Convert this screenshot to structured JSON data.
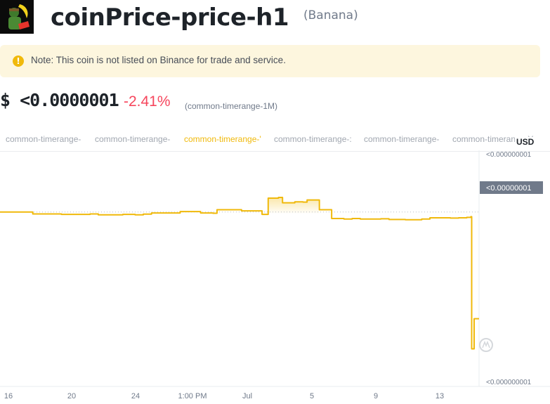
{
  "header": {
    "title": "coinPrice-price-h1",
    "subtitle": "(Banana)",
    "logo_icon": "banana-character-logo"
  },
  "note": {
    "icon": "exclamation-circle-icon",
    "text": "Note: This coin is not listed on Binance for trade and service."
  },
  "price": {
    "value": "$ <0.0000001",
    "change": "-2.41%",
    "range": "(common-timerange-1M)"
  },
  "tabs": [
    {
      "label": "common-timerange-",
      "active": false
    },
    {
      "label": "common-timerange-",
      "active": false
    },
    {
      "label": "common-timerange-'",
      "active": true
    },
    {
      "label": "common-timerange-:",
      "active": false
    },
    {
      "label": "common-timerange-",
      "active": false
    },
    {
      "label": "common-timerange-Y",
      "active": false
    }
  ],
  "colors": {
    "accent": "#f0b90b",
    "negative": "#f6465d",
    "muted": "#a1a7b0"
  },
  "chart_data": {
    "type": "line",
    "currency_label": "USD",
    "y_tick_labels": [
      "<0.000000001",
      "<0.00000001",
      "<0.000000001"
    ],
    "current_price_label": "<0.00000001",
    "x_tick_labels": [
      "16",
      "20",
      "24",
      "1:00 PM",
      "Jul",
      "5",
      "9",
      "13"
    ],
    "series": [
      {
        "points": [
          [
            0,
            0.74
          ],
          [
            5,
            0.74
          ],
          [
            8,
            0.732
          ],
          [
            12,
            0.732
          ],
          [
            15,
            0.73
          ],
          [
            22,
            0.732
          ],
          [
            24,
            0.728
          ],
          [
            28,
            0.728
          ],
          [
            30,
            0.73
          ],
          [
            33,
            0.728
          ],
          [
            35,
            0.731
          ],
          [
            37,
            0.736
          ],
          [
            42,
            0.736
          ],
          [
            44,
            0.742
          ],
          [
            47,
            0.742
          ],
          [
            49,
            0.736
          ],
          [
            52,
            0.735
          ],
          [
            53,
            0.75
          ],
          [
            57,
            0.75
          ],
          [
            59,
            0.745
          ],
          [
            62,
            0.745
          ],
          [
            64,
            0.73
          ],
          [
            65,
            0.73
          ],
          [
            65.5,
            0.8
          ],
          [
            67,
            0.8
          ],
          [
            68,
            0.803
          ],
          [
            69,
            0.78
          ],
          [
            72,
            0.784
          ],
          [
            74,
            0.783
          ],
          [
            75,
            0.792
          ],
          [
            77,
            0.792
          ],
          [
            78,
            0.75
          ],
          [
            80,
            0.75
          ],
          [
            81,
            0.712
          ],
          [
            84,
            0.71
          ],
          [
            86,
            0.712
          ],
          [
            88,
            0.71
          ],
          [
            90,
            0.71
          ],
          [
            93,
            0.711
          ],
          [
            95,
            0.708
          ],
          [
            97,
            0.708
          ],
          [
            99,
            0.707
          ],
          [
            101,
            0.707
          ],
          [
            103,
            0.71
          ],
          [
            105,
            0.715
          ],
          [
            108,
            0.715
          ],
          [
            110,
            0.714
          ],
          [
            112,
            0.715
          ],
          [
            114,
            0.717
          ],
          [
            115,
            0.72
          ],
          [
            115.2,
            0.15
          ],
          [
            115.6,
            0.15
          ],
          [
            115.8,
            0.28
          ],
          [
            117,
            0.28
          ]
        ]
      }
    ],
    "x_range": [
      0,
      117
    ],
    "y_range": [
      0,
      1
    ],
    "fill_region": [
      65.5,
      78
    ]
  }
}
